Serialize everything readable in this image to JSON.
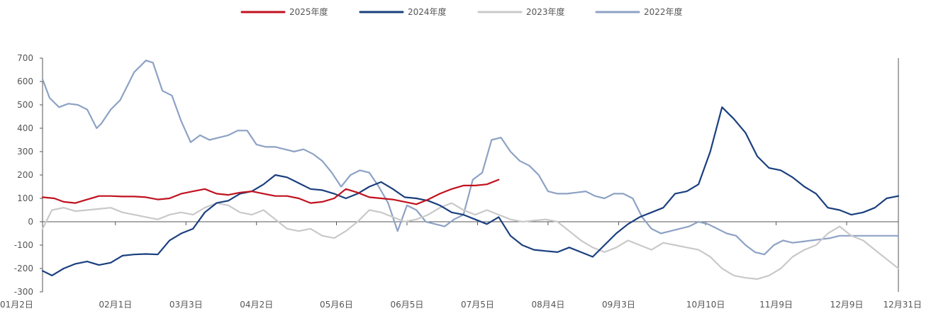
{
  "chart_data": {
    "type": "line",
    "title": "",
    "xlabel": "",
    "ylabel": "",
    "ylim": [
      -300,
      700
    ],
    "yticks": [
      -300,
      -200,
      -100,
      0,
      100,
      200,
      300,
      400,
      500,
      600,
      700
    ],
    "x_domain": [
      1,
      365
    ],
    "x_tick_days": [
      1,
      32,
      62,
      92,
      126,
      156,
      186,
      216,
      246,
      283,
      313,
      343,
      365
    ],
    "x_tick_labels": [
      "01月2日",
      "02月1日",
      "03月3日",
      "04月2日",
      "05月6日",
      "06月5日",
      "07月5日",
      "08月4日",
      "09月3日",
      "10月10日",
      "11月9日",
      "12月9日",
      "12月31日"
    ],
    "legend_position": "top-center",
    "grid": false,
    "series": [
      {
        "name": "2025年度",
        "color": "#C0121F",
        "x": [
          1,
          6,
          10,
          15,
          20,
          25,
          30,
          35,
          40,
          45,
          50,
          55,
          60,
          65,
          70,
          75,
          80,
          85,
          90,
          95,
          100,
          105,
          110,
          115,
          120,
          125,
          130,
          135,
          140,
          145,
          150,
          155,
          160,
          165,
          170,
          175,
          180,
          185,
          190,
          195
        ],
        "y": [
          105,
          100,
          85,
          80,
          95,
          110,
          110,
          108,
          108,
          105,
          95,
          100,
          120,
          130,
          140,
          120,
          115,
          125,
          130,
          120,
          110,
          110,
          100,
          80,
          85,
          100,
          140,
          125,
          105,
          100,
          95,
          85,
          75,
          95,
          120,
          140,
          155,
          155,
          160,
          180
        ]
      },
      {
        "name": "2024年度",
        "color": "#1A3F7E",
        "x": [
          1,
          5,
          10,
          15,
          20,
          25,
          30,
          35,
          40,
          45,
          50,
          55,
          60,
          65,
          70,
          75,
          80,
          85,
          90,
          95,
          100,
          105,
          110,
          115,
          120,
          125,
          130,
          135,
          140,
          145,
          150,
          155,
          160,
          165,
          170,
          175,
          180,
          185,
          190,
          195,
          200,
          205,
          210,
          215,
          220,
          225,
          230,
          235,
          240,
          245,
          250,
          255,
          260,
          265,
          270,
          275,
          280,
          285,
          290,
          295,
          300,
          305,
          310,
          315,
          320,
          325,
          330,
          335,
          340,
          345,
          350,
          355,
          360,
          365
        ],
        "y": [
          -210,
          -230,
          -200,
          -180,
          -170,
          -185,
          -175,
          -145,
          -140,
          -138,
          -140,
          -80,
          -50,
          -30,
          40,
          80,
          90,
          120,
          130,
          160,
          200,
          190,
          165,
          140,
          135,
          120,
          100,
          120,
          150,
          170,
          140,
          105,
          100,
          90,
          70,
          40,
          30,
          10,
          -10,
          20,
          -60,
          -100,
          -120,
          -125,
          -130,
          -110,
          -130,
          -150,
          -100,
          -50,
          -10,
          20,
          40,
          60,
          120,
          130,
          160,
          300,
          490,
          440,
          380,
          280,
          230,
          220,
          190,
          150,
          120,
          60,
          50,
          30,
          40,
          60,
          100,
          110
        ]
      },
      {
        "name": "2023年度",
        "color": "#C9C9C9",
        "x": [
          1,
          5,
          10,
          15,
          20,
          25,
          30,
          35,
          40,
          45,
          50,
          55,
          60,
          65,
          70,
          75,
          80,
          85,
          90,
          95,
          100,
          105,
          110,
          115,
          120,
          125,
          130,
          135,
          140,
          145,
          150,
          155,
          160,
          165,
          170,
          175,
          180,
          185,
          190,
          195,
          200,
          205,
          210,
          215,
          220,
          225,
          230,
          235,
          240,
          245,
          250,
          255,
          260,
          265,
          270,
          275,
          280,
          285,
          290,
          295,
          300,
          305,
          310,
          315,
          320,
          325,
          330,
          335,
          340,
          345,
          350,
          355,
          360,
          365
        ],
        "y": [
          -30,
          50,
          60,
          45,
          50,
          55,
          60,
          40,
          30,
          20,
          10,
          30,
          40,
          30,
          60,
          80,
          70,
          40,
          30,
          50,
          10,
          -30,
          -40,
          -30,
          -60,
          -70,
          -40,
          0,
          50,
          40,
          20,
          0,
          10,
          30,
          60,
          80,
          50,
          30,
          50,
          30,
          10,
          0,
          5,
          10,
          0,
          -40,
          -80,
          -110,
          -130,
          -110,
          -80,
          -100,
          -120,
          -90,
          -100,
          -110,
          -120,
          -150,
          -200,
          -230,
          -240,
          -245,
          -230,
          -200,
          -150,
          -120,
          -100,
          -50,
          -20,
          -60,
          -80,
          -120,
          -160,
          -200
        ]
      },
      {
        "name": "2022年度",
        "color": "#8DA2C4",
        "x": [
          1,
          4,
          8,
          12,
          16,
          20,
          24,
          26,
          30,
          34,
          38,
          40,
          42,
          45,
          48,
          52,
          56,
          60,
          64,
          68,
          72,
          76,
          80,
          84,
          88,
          92,
          96,
          100,
          104,
          108,
          112,
          116,
          120,
          124,
          128,
          132,
          136,
          140,
          144,
          148,
          152,
          156,
          160,
          164,
          168,
          172,
          176,
          180,
          184,
          188,
          192,
          196,
          200,
          204,
          208,
          212,
          216,
          220,
          224,
          228,
          232,
          236,
          240,
          244,
          248,
          252,
          256,
          260,
          264,
          268,
          272,
          276,
          280,
          284,
          288,
          292,
          296,
          300,
          304,
          308,
          312,
          316,
          320,
          324,
          328,
          332,
          336,
          340,
          344,
          348,
          352,
          356,
          360,
          365
        ],
        "y": [
          610,
          530,
          490,
          505,
          500,
          480,
          400,
          420,
          480,
          520,
          600,
          640,
          660,
          690,
          680,
          560,
          540,
          430,
          340,
          370,
          350,
          360,
          370,
          390,
          390,
          330,
          320,
          320,
          310,
          300,
          310,
          290,
          260,
          210,
          150,
          200,
          220,
          210,
          150,
          80,
          -40,
          70,
          50,
          0,
          -10,
          -20,
          10,
          30,
          180,
          210,
          350,
          360,
          300,
          260,
          240,
          200,
          130,
          120,
          120,
          125,
          130,
          110,
          100,
          120,
          120,
          100,
          20,
          -30,
          -50,
          -40,
          -30,
          -20,
          0,
          -10,
          -30,
          -50,
          -60,
          -100,
          -130,
          -140,
          -100,
          -80,
          -90,
          -85,
          -80,
          -75,
          -70,
          -60,
          -60,
          -60,
          -60,
          -60,
          -60,
          -60
        ]
      }
    ]
  }
}
